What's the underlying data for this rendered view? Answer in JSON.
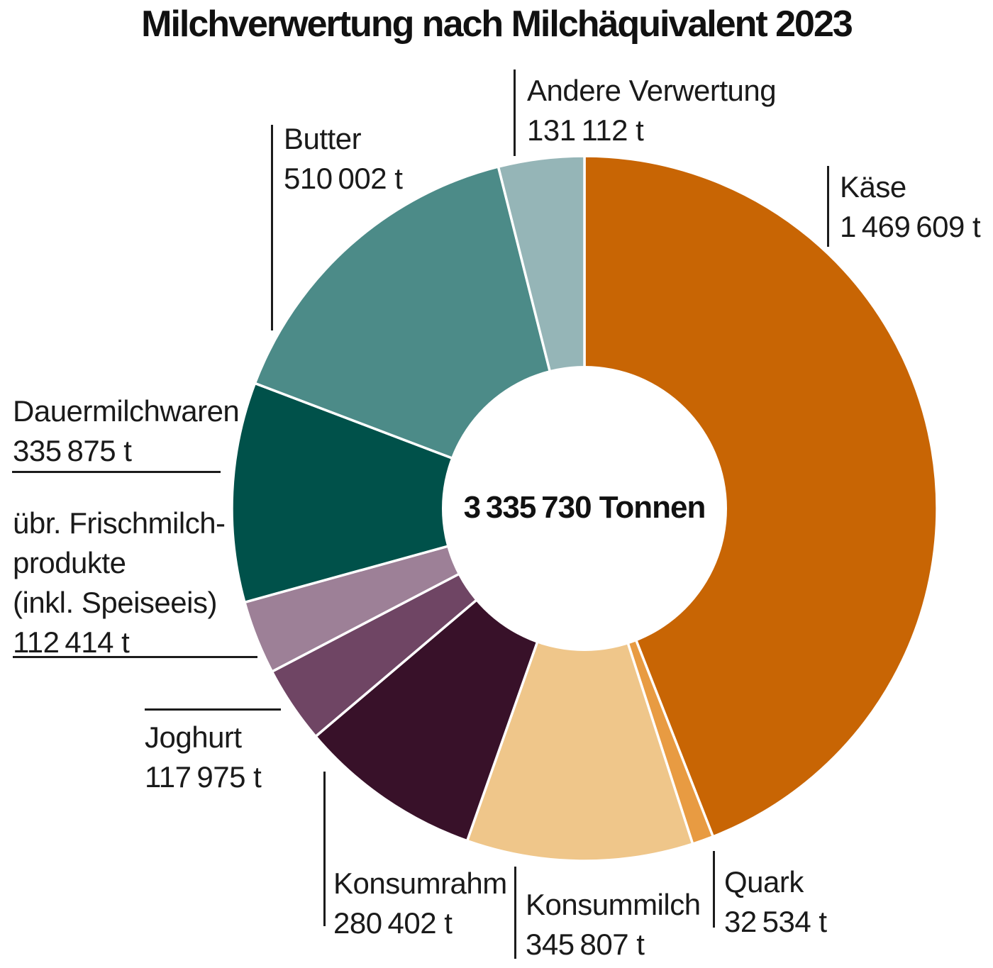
{
  "chart_data": {
    "type": "pie",
    "variant": "donut",
    "title": "Milchverwertung nach Milchäquivalent 2023",
    "unit": "t",
    "total_value": 3335730,
    "center_label": "3 335 730 Tonnen",
    "start_angle_deg": 0,
    "direction": "clockwise",
    "gap_color": "#ffffff",
    "segments": [
      {
        "id": "kaese",
        "name": "Käse",
        "value": 1469609,
        "value_label": "1 469 609 t",
        "color": "#C86504"
      },
      {
        "id": "quark",
        "name": "Quark",
        "value": 32534,
        "value_label": "32 534 t",
        "color": "#E89B42"
      },
      {
        "id": "konsummilch",
        "name": "Konsummilch",
        "value": 345807,
        "value_label": "345 807 t",
        "color": "#EFC68A"
      },
      {
        "id": "konsumrahm",
        "name": "Konsumrahm",
        "value": 280402,
        "value_label": "280 402 t",
        "color": "#381129"
      },
      {
        "id": "joghurt",
        "name": "Joghurt",
        "value": 117975,
        "value_label": "117 975 t",
        "color": "#6F4564"
      },
      {
        "id": "uebr-frischmilchprodukte",
        "name": "übr. Frischmilchprodukte (inkl. Speiseeis)",
        "name_lines": [
          "übr. Frischmilch-",
          "produkte",
          "(inkl. Speiseeis)"
        ],
        "value": 112414,
        "value_label": "112 414 t",
        "color": "#9D8097"
      },
      {
        "id": "dauermilchwaren",
        "name": "Dauermilchwaren",
        "value": 335875,
        "value_label": "335 875 t",
        "color": "#00514A"
      },
      {
        "id": "butter",
        "name": "Butter",
        "value": 510002,
        "value_label": "510 002 t",
        "color": "#4C8B88"
      },
      {
        "id": "andere-verwertung",
        "name": "Andere Verwertung",
        "value": 131112,
        "value_label": "131 112 t",
        "color": "#95B5B7"
      }
    ]
  }
}
